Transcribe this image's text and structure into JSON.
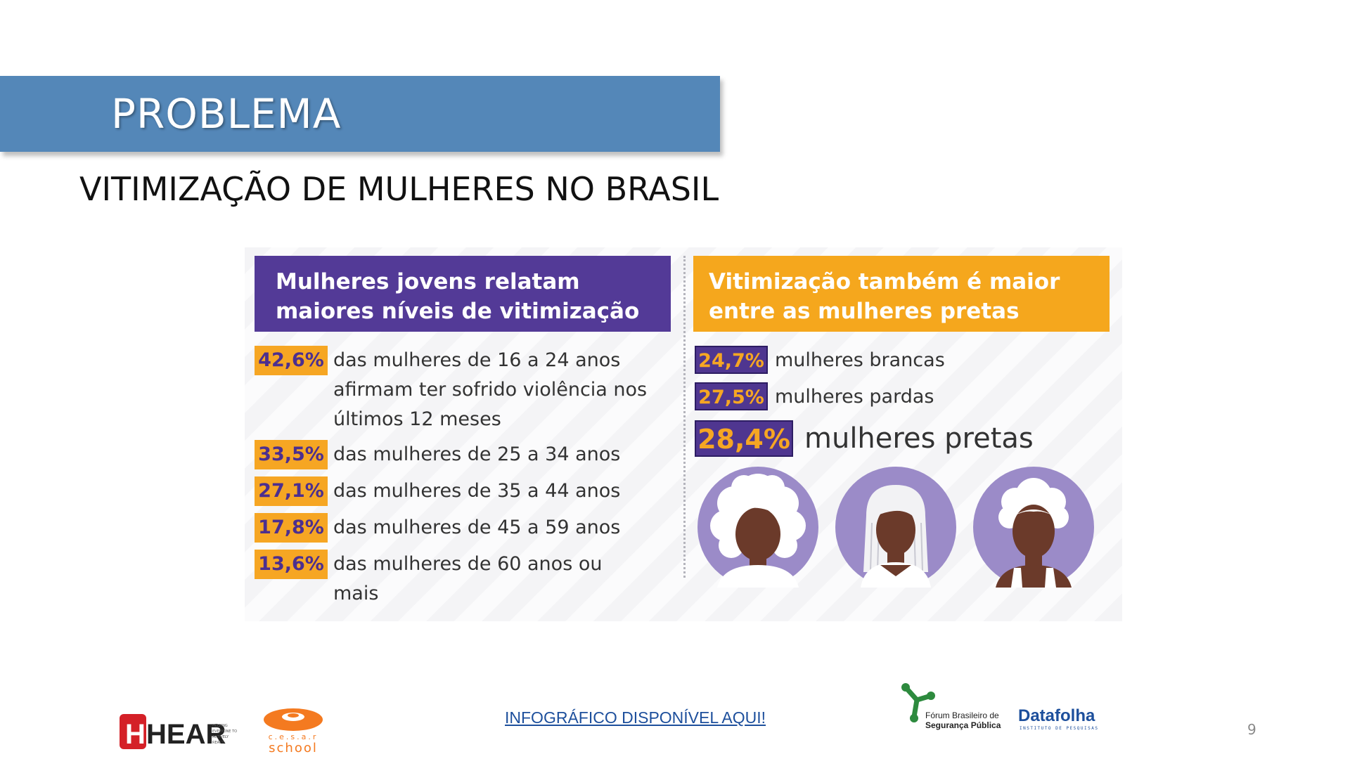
{
  "slide": {
    "title": "PROBLEMA",
    "subtitle": "VITIMIZAÇÃO DE MULHERES NO BRASIL",
    "page_number": "9",
    "link_text": "INFOGRÁFICO DISPONÍVEL AQUI!"
  },
  "infographic": {
    "left": {
      "heading": "Mulheres jovens relatam\nmaiores níveis de vitimização",
      "rows": [
        {
          "value": "42,6%",
          "text": "das mulheres de 16 a 24 anos afirmam ter sofrido violência nos últimos 12 meses"
        },
        {
          "value": "33,5%",
          "text": "das mulheres de 25 a 34 anos"
        },
        {
          "value": "27,1%",
          "text": "das mulheres de 35 a 44 anos"
        },
        {
          "value": "17,8%",
          "text": "das mulheres de 45 a 59 anos"
        },
        {
          "value": "13,6%",
          "text": "das mulheres de 60 anos ou mais"
        }
      ]
    },
    "right": {
      "heading": "Vitimização também é maior\nentre as mulheres pretas",
      "rows": [
        {
          "value": "24,7%",
          "text": "mulheres brancas"
        },
        {
          "value": "27,5%",
          "text": "mulheres pardas"
        },
        {
          "value": "28,4%",
          "text": "mulheres pretas"
        }
      ]
    }
  },
  "logos": {
    "hear": {
      "text": "HEAR",
      "letter": "H",
      "tagline": "HELPING EVERYONE TO ACTIVELY REACT"
    },
    "cesar": {
      "text": "c.e.s.a.r",
      "school": "school"
    },
    "forum": {
      "line1": "Fórum Brasileiro de",
      "line2": "Segurança Pública"
    },
    "datafolha": {
      "text": "Datafolha",
      "tagline": "INSTITUTO DE PESQUISAS"
    }
  },
  "colors": {
    "banner": "#5487b8",
    "purple": "#533a97",
    "orange": "#f5a71d",
    "face_bg": "#9b8bc8",
    "skin": "#6b3a2a",
    "hear_red": "#d42027",
    "cesar_orange": "#f47a20",
    "forum_green": "#2d8a3e",
    "datafolha_blue": "#1d4f9c"
  }
}
